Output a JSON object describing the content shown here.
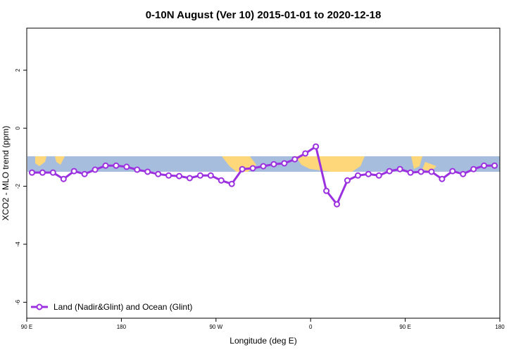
{
  "chart_data": {
    "type": "line",
    "title": "0-10N August (Ver 10)   2015-01-01 to 2020-12-18",
    "xlabel": "Longitude (deg E)",
    "ylabel": "XCO2 - MLO trend (ppm)",
    "x": [
      95,
      105,
      115,
      125,
      135,
      145,
      155,
      165,
      175,
      185,
      195,
      205,
      215,
      225,
      235,
      245,
      255,
      265,
      275,
      285,
      295,
      305,
      315,
      325,
      335,
      345,
      355,
      365,
      375,
      385,
      395,
      405,
      415,
      425,
      435,
      445,
      455,
      465,
      475,
      485,
      495,
      505,
      515,
      525,
      535
    ],
    "series": [
      {
        "name": "Land (Nadir&Glint) and Ocean (Glint)",
        "color": "#9b30e0",
        "values": [
          -1.53,
          -1.53,
          -1.53,
          -1.75,
          -1.48,
          -1.58,
          -1.43,
          -1.29,
          -1.29,
          -1.33,
          -1.43,
          -1.5,
          -1.58,
          -1.63,
          -1.65,
          -1.72,
          -1.63,
          -1.63,
          -1.8,
          -1.92,
          -1.41,
          -1.38,
          -1.31,
          -1.24,
          -1.21,
          -1.07,
          -0.87,
          -0.63,
          -2.16,
          -2.62,
          -1.8,
          -1.63,
          -1.58,
          -1.63,
          -1.48,
          -1.41,
          -1.53,
          -1.5,
          -1.5,
          -1.75,
          -1.48,
          -1.58,
          -1.41,
          -1.29,
          -1.29
        ]
      }
    ],
    "xlim": [
      90,
      540
    ],
    "xticks": [
      {
        "value": 90,
        "label": "90 E"
      },
      180,
      {
        "value": 270,
        "label": "90 W"
      },
      {
        "value": 360,
        "label": "0"
      },
      {
        "value": 450,
        "label": "90 E"
      },
      {
        "value": 540,
        "label": "180"
      }
    ],
    "ylim": [
      -6.55,
      3.45
    ],
    "yticks": [
      2,
      0,
      -2,
      -4,
      -6
    ],
    "legend": "bottom-left"
  }
}
